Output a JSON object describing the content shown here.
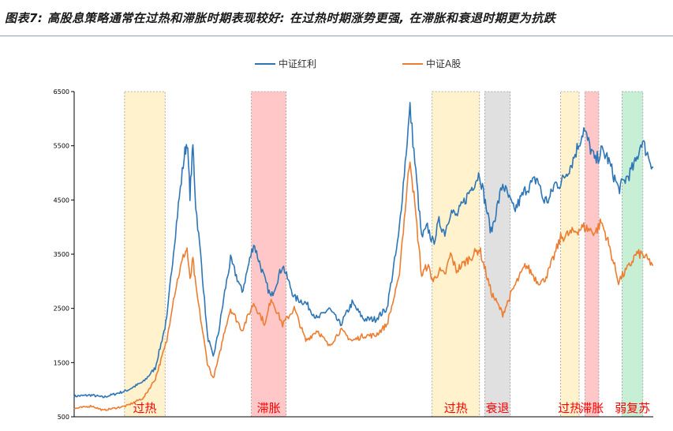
{
  "title": "图表7: 高股息策略通常在过热和滞胀时期表现较好: 在过热时期涨势更强, 在滞胀和衰退时期更为抗跌",
  "chart_data": {
    "type": "line",
    "title": "图表7: 高股息策略通常在过热和滞胀时期表现较好: 在过热时期涨势更强, 在滞胀和衰退时期更为抗跌",
    "xlabel": "",
    "ylabel": "",
    "ylim": [
      500,
      6500
    ],
    "yticks": [
      "6500",
      "5500",
      "4500",
      "3500",
      "2500",
      "1500",
      "500"
    ],
    "yticks_values": [
      6500,
      5500,
      4500,
      3500,
      2500,
      1500,
      500
    ],
    "x_range": [
      0,
      100
    ],
    "grid": false,
    "legend_position": "top-center",
    "series": [
      {
        "name": "中证红利",
        "color": "#2e75b6",
        "x": [
          0,
          3,
          5,
          7,
          9,
          12,
          14,
          16,
          17,
          18,
          19,
          19.5,
          20,
          20.5,
          21,
          22,
          23,
          24,
          25,
          26,
          27,
          29,
          31,
          33,
          34,
          36,
          38,
          40,
          42,
          44,
          46,
          48,
          50,
          52,
          54,
          56,
          58,
          60,
          61,
          62,
          63,
          64,
          65,
          66,
          68,
          70,
          72,
          74,
          76,
          78,
          80,
          81,
          82,
          83,
          84,
          86,
          88,
          90,
          91,
          92,
          94,
          96,
          97,
          98,
          100
        ],
        "values": [
          880,
          900,
          860,
          920,
          980,
          1150,
          1400,
          2300,
          3400,
          4400,
          5300,
          5600,
          4600,
          5500,
          4400,
          3300,
          2000,
          1600,
          2100,
          2800,
          3400,
          2800,
          3700,
          3000,
          2700,
          3300,
          2700,
          2600,
          2300,
          2500,
          2200,
          2600,
          2300,
          2300,
          2500,
          3800,
          6200,
          3800,
          4000,
          3700,
          4100,
          3900,
          4300,
          4200,
          4600,
          5000,
          3900,
          4800,
          4300,
          4700,
          4900,
          4500,
          4500,
          4800,
          4800,
          5200,
          5800,
          5200,
          5400,
          5300,
          4700,
          5000,
          5200,
          5600,
          5100
        ]
      },
      {
        "name": "中证A股",
        "color": "#ed7d31",
        "x": [
          0,
          3,
          5,
          7,
          9,
          12,
          14,
          16,
          17,
          18,
          19,
          19.5,
          20,
          20.5,
          21,
          22,
          23,
          24,
          25,
          26,
          27,
          29,
          31,
          33,
          34,
          36,
          38,
          40,
          42,
          44,
          46,
          48,
          50,
          52,
          54,
          56,
          58,
          60,
          61,
          62,
          63,
          64,
          65,
          66,
          68,
          70,
          72,
          74,
          76,
          78,
          80,
          81,
          82,
          83,
          84,
          86,
          88,
          90,
          91,
          92,
          94,
          96,
          97,
          98,
          100
        ],
        "values": [
          650,
          700,
          620,
          660,
          700,
          850,
          1200,
          1900,
          2600,
          3100,
          3500,
          3600,
          3000,
          3400,
          2900,
          2200,
          1500,
          1200,
          1600,
          2100,
          2500,
          2100,
          2600,
          2200,
          2700,
          2200,
          2500,
          1900,
          2100,
          1800,
          2100,
          1900,
          2000,
          2000,
          2200,
          3000,
          5300,
          3100,
          3300,
          3000,
          3200,
          3100,
          3500,
          3200,
          3400,
          3600,
          2800,
          2400,
          2900,
          3300,
          3000,
          3000,
          3200,
          3500,
          3800,
          3900,
          4000,
          3900,
          4100,
          3800,
          3000,
          3300,
          3500,
          3500,
          3300
        ]
      }
    ],
    "bands": [
      {
        "label": "过热",
        "x_start": 8.7,
        "x_end": 15.7,
        "color": "#fff2cc"
      },
      {
        "label": "滞胀",
        "x_start": 30.6,
        "x_end": 36.6,
        "color": "#ffc7c7"
      },
      {
        "label": "过热",
        "x_start": 61.8,
        "x_end": 70.0,
        "color": "#fff2cc"
      },
      {
        "label": "衰退",
        "x_start": 70.9,
        "x_end": 75.3,
        "color": "#e0e0e0"
      },
      {
        "label": "过热",
        "x_start": 84.0,
        "x_end": 87.2,
        "color": "#fff2cc"
      },
      {
        "label": "滞胀",
        "x_start": 88.2,
        "x_end": 90.6,
        "color": "#ffc7c7"
      },
      {
        "label": "弱复苏",
        "x_start": 94.6,
        "x_end": 98.2,
        "color": "#c6efd5"
      }
    ]
  }
}
